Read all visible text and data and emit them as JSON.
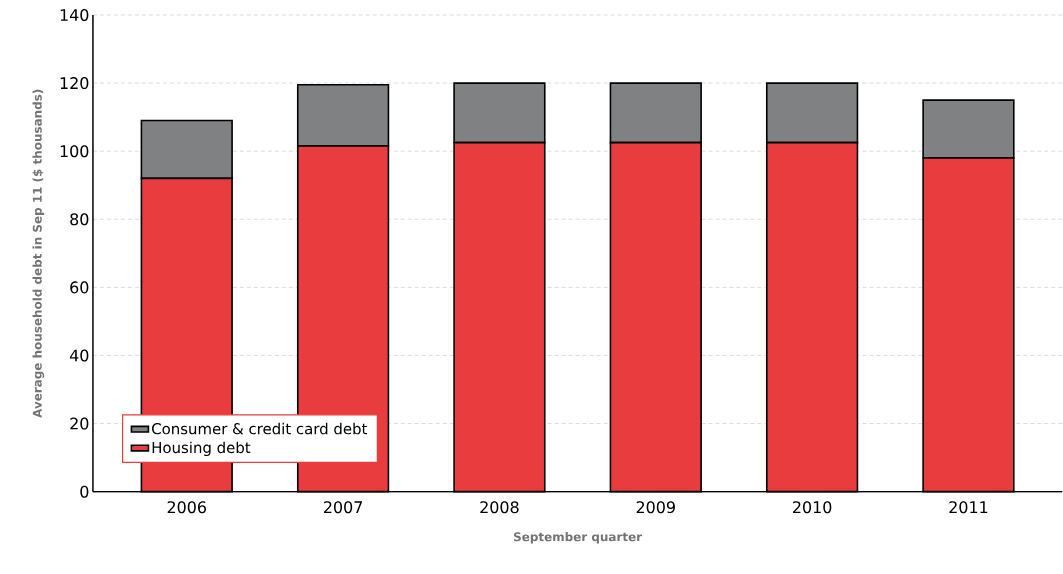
{
  "chart_data": {
    "type": "bar",
    "stacked": true,
    "xlabel": "September quarter",
    "ylabel": "Average household debt in Sep 11 ($ thousands)",
    "categories": [
      "2006",
      "2007",
      "2008",
      "2009",
      "2010",
      "2011"
    ],
    "series": [
      {
        "name": "Housing debt",
        "color": "#e83c3f",
        "values": [
          92,
          101.5,
          102.5,
          102.5,
          102.5,
          98
        ]
      },
      {
        "name": "Consumer & credit card debt",
        "color": "#7f8183",
        "values": [
          17,
          18,
          17.5,
          17.5,
          17.5,
          17
        ]
      }
    ],
    "ylim": [
      0,
      140
    ],
    "yticks": [
      0,
      20,
      40,
      60,
      80,
      100,
      120,
      140
    ],
    "grid": "y",
    "legend": "bottom left"
  }
}
